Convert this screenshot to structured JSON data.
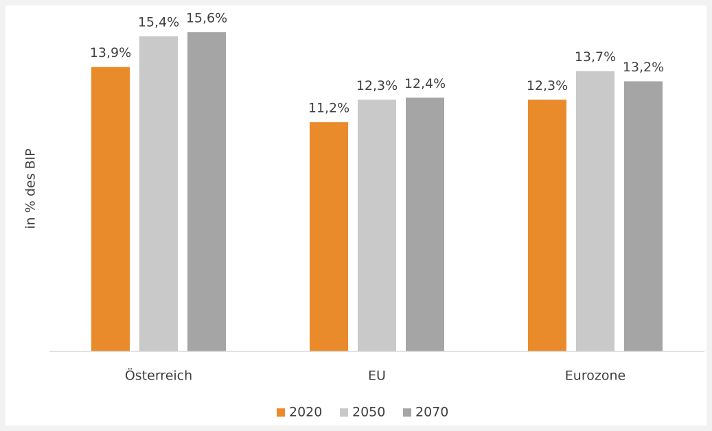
{
  "chart_data": {
    "type": "bar",
    "y_label": "in % des BIP",
    "categories": [
      "Österreich",
      "EU",
      "Eurozone"
    ],
    "series": [
      {
        "name": "2020",
        "color": "#e98b2a",
        "values": [
          13.9,
          11.2,
          12.3
        ],
        "value_labels": [
          "13,9%",
          "11,2%",
          "12,3%"
        ]
      },
      {
        "name": "2050",
        "color": "#c9c9c9",
        "values": [
          15.4,
          12.3,
          13.7
        ],
        "value_labels": [
          "15,4%",
          "12,3%",
          "13,7%"
        ]
      },
      {
        "name": "2070",
        "color": "#a5a5a5",
        "values": [
          15.6,
          12.4,
          13.2
        ],
        "value_labels": [
          "15,6%",
          "12,4%",
          "13,2%"
        ]
      }
    ],
    "ylim": [
      0,
      16
    ],
    "legend": "bottom"
  }
}
